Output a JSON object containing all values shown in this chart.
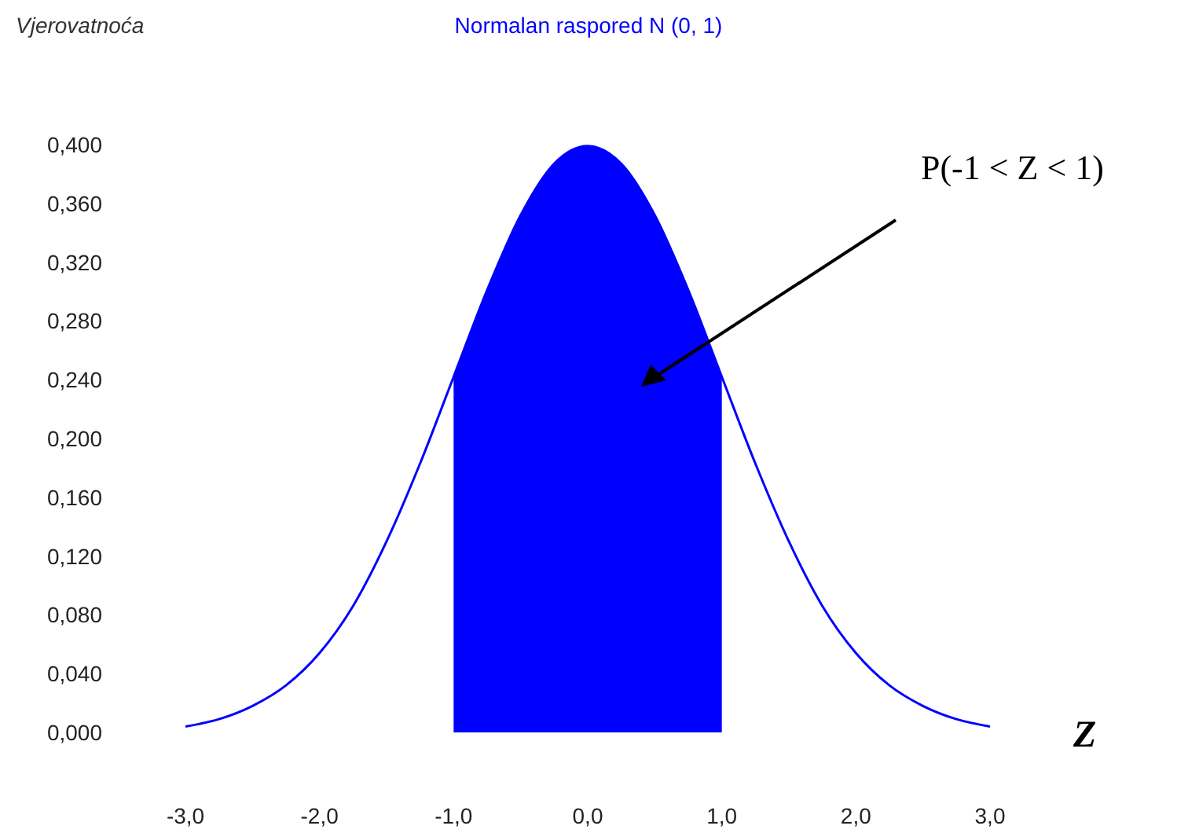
{
  "chart_data": {
    "type": "line",
    "title": "Normalan raspored N (0, 1)",
    "ylabel": "Vjerovatnoća",
    "xlabel": "Z",
    "annotations": [
      "P(-1 < Z < 1)"
    ],
    "series": [
      {
        "color": "#0000ff",
        "x": [
          -3,
          -2.75,
          -2.5,
          -2.25,
          -2,
          -1.75,
          -1.5,
          -1.25,
          -1,
          -0.75,
          -0.5,
          -0.25,
          0,
          0.25,
          0.5,
          0.75,
          1,
          1.25,
          1.5,
          1.75,
          2,
          2.25,
          2.5,
          2.75,
          3
        ],
        "values": [
          0.004,
          0.009,
          0.018,
          0.032,
          0.054,
          0.086,
          0.13,
          0.183,
          0.242,
          0.301,
          0.352,
          0.387,
          0.399,
          0.387,
          0.352,
          0.301,
          0.242,
          0.183,
          0.13,
          0.086,
          0.054,
          0.032,
          0.018,
          0.009,
          0.004
        ]
      },
      {
        "type": "area",
        "color": "#0000ff",
        "x": [
          -1,
          -0.75,
          -0.5,
          -0.25,
          0,
          0.25,
          0.5,
          0.75,
          1
        ],
        "values": [
          0.242,
          0.301,
          0.352,
          0.387,
          0.399,
          0.387,
          0.352,
          0.301,
          0.242
        ]
      }
    ],
    "xlim": [
      -3,
      3
    ],
    "xticks": [
      {
        "value": -3,
        "label": "-3,0"
      },
      {
        "value": -2,
        "label": "-2,0"
      },
      {
        "value": -1,
        "label": "-1,0"
      },
      {
        "value": 0,
        "label": "0,0"
      },
      {
        "value": 1,
        "label": "1,0"
      },
      {
        "value": 2,
        "label": "2,0"
      },
      {
        "value": 3,
        "label": "3,0"
      }
    ],
    "ylim": [
      0,
      0.4
    ],
    "yticks": [
      {
        "value": 0,
        "label": "0,000"
      },
      {
        "value": 0.04,
        "label": "0,040"
      },
      {
        "value": 0.08,
        "label": "0,080"
      },
      {
        "value": 0.12,
        "label": "0,120"
      },
      {
        "value": 0.16,
        "label": "0,160"
      },
      {
        "value": 0.2,
        "label": "0,200"
      },
      {
        "value": 0.24,
        "label": "0,240"
      },
      {
        "value": 0.28,
        "label": "0,280"
      },
      {
        "value": 0.32,
        "label": "0,320"
      },
      {
        "value": 0.36,
        "label": "0,360"
      },
      {
        "value": 0.4,
        "label": "0,400"
      }
    ]
  }
}
